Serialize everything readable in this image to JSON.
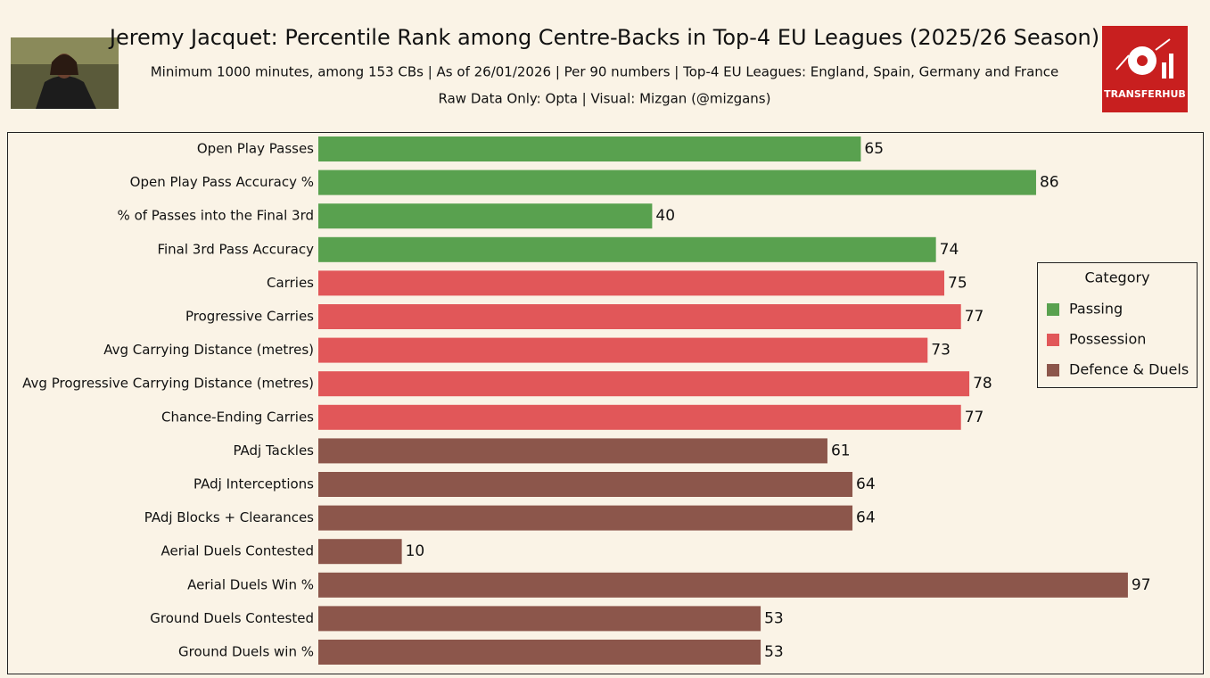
{
  "chart_data": {
    "type": "barh",
    "title": "Jeremy Jacquet: Percentile Rank among Centre-Backs in Top-4 EU Leagues (2025/26 Season)",
    "subtitle": "Minimum 1000 minutes, among 153 CBs | As of 26/01/2026 | Per 90 numbers | Top-4 EU Leagues: England, Spain, Germany and France",
    "credit": "Raw Data Only: Opta | Visual: Mizgan (@mizgans)",
    "logo": "TRANSFERHUB",
    "legend_title": "Category",
    "legend": "right",
    "categories": [
      "Open Play Passes",
      "Open Play Pass Accuracy %",
      "% of Passes into the Final 3rd",
      "Final 3rd Pass Accuracy",
      "Carries",
      "Progressive Carries",
      "Avg Carrying Distance (metres)",
      "Avg Progressive Carrying Distance (metres)",
      "Chance-Ending Carries",
      "PAdj Tackles",
      "PAdj Interceptions",
      "PAdj Blocks + Clearances",
      "Aerial Duels Contested",
      "Aerial Duels Win %",
      "Ground Duels Contested",
      "Ground Duels win %"
    ],
    "series": [
      {
        "name": "Passing",
        "color": "#59a14f",
        "values": [
          65,
          86,
          40,
          74,
          null,
          null,
          null,
          null,
          null,
          null,
          null,
          null,
          null,
          null,
          null,
          null
        ]
      },
      {
        "name": "Possession",
        "color": "#e15759",
        "values": [
          null,
          null,
          null,
          null,
          75,
          77,
          73,
          78,
          77,
          null,
          null,
          null,
          null,
          null,
          null,
          null
        ]
      },
      {
        "name": "Defence & Duels",
        "color": "#8c564b",
        "values": [
          null,
          null,
          null,
          null,
          null,
          null,
          null,
          null,
          null,
          61,
          64,
          64,
          10,
          97,
          53,
          53
        ]
      }
    ],
    "xlim": [
      0,
      100
    ]
  }
}
